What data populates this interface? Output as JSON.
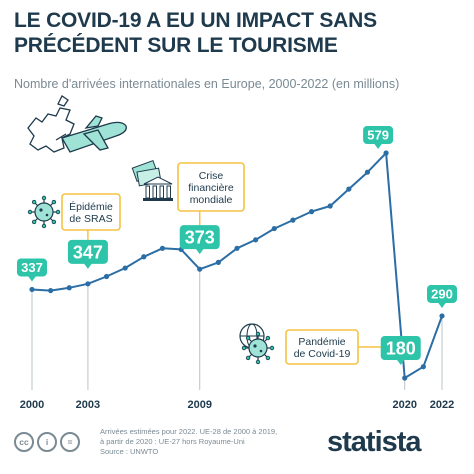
{
  "title_lines": [
    "LE COVID-19 A EU UN IMPACT SANS",
    "PRÉCÉDENT SUR LE TOURISME"
  ],
  "subtitle": "Nombre d'arrivées internationales en Europe, 2000-2022 (en millions)",
  "colors": {
    "line": "#2b6ea5",
    "accent": "#2ec4a9",
    "text": "#1e3a4c",
    "muted": "#7a8a94",
    "callout": "#f5c344"
  },
  "chart_data": {
    "type": "line",
    "x": [
      2000,
      2001,
      2002,
      2003,
      2004,
      2005,
      2006,
      2007,
      2008,
      2009,
      2010,
      2011,
      2012,
      2013,
      2014,
      2015,
      2016,
      2017,
      2018,
      2019,
      2020,
      2021,
      2022
    ],
    "values": [
      337,
      335,
      340,
      347,
      360,
      375,
      395,
      410,
      408,
      373,
      385,
      410,
      425,
      445,
      460,
      475,
      485,
      515,
      545,
      579,
      180,
      200,
      290
    ],
    "xticks": [
      "2000",
      "2003",
      "2009",
      "2020",
      "2022"
    ],
    "value_labels": [
      {
        "year": 2000,
        "text": "337"
      },
      {
        "year": 2003,
        "text": "347"
      },
      {
        "year": 2009,
        "text": "373"
      },
      {
        "year": 2019,
        "text": "579"
      },
      {
        "year": 2020,
        "text": "180"
      },
      {
        "year": 2022,
        "text": "290"
      }
    ],
    "annotations": [
      {
        "year": 2003,
        "lines": [
          "Épidémie",
          "de SRAS"
        ],
        "icon": "virus-icon"
      },
      {
        "year": 2009,
        "lines": [
          "Crise",
          "financière",
          "mondiale"
        ],
        "icon": "money-bank-icon"
      },
      {
        "year": 2020,
        "lines": [
          "Pandémie",
          "de Covid-19"
        ],
        "icon": "globe-virus-icon"
      }
    ]
  },
  "footer": {
    "notes": [
      "Arrivées estimées pour 2022. UE-28 de 2000 à 2019,",
      "à partir de 2020 : UE-27 hors Royaume-Uni",
      "Source : UNWTO"
    ],
    "license_icons": [
      "cc-icon",
      "attribution-icon",
      "equal-icon"
    ],
    "license_glyphs": [
      "cc",
      "i",
      "="
    ],
    "brand": "statista"
  }
}
